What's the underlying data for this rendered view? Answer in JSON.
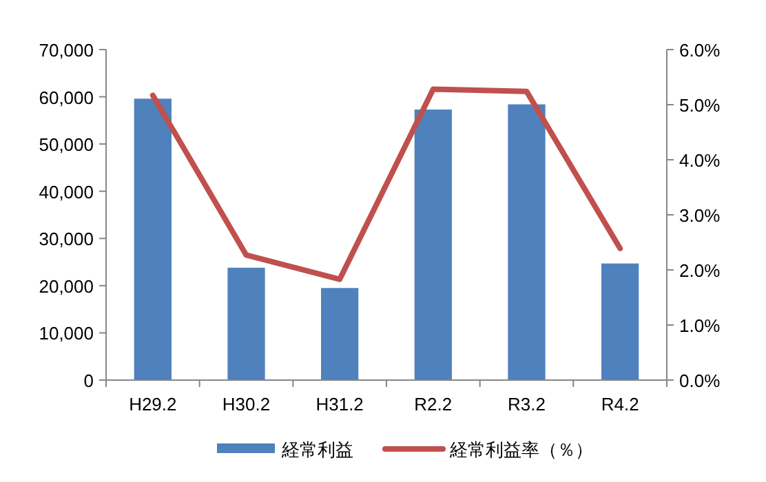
{
  "chart_data": {
    "type": "bar",
    "categories": [
      "H29.2",
      "H30.2",
      "H31.2",
      "R2.2",
      "R3.2",
      "R4.2"
    ],
    "series": [
      {
        "name": "経常利益",
        "color": "#4f81bd",
        "values": [
          59600,
          23800,
          19500,
          57300,
          58400,
          24700
        ]
      },
      {
        "name": "経常利益率（％）",
        "type": "line",
        "axis": "y2",
        "color": "#c0504d",
        "values": [
          5.17,
          2.27,
          1.83,
          5.28,
          5.24,
          2.39
        ]
      }
    ],
    "ylim": [
      0,
      70000
    ],
    "yticks": [
      {
        "value": 0,
        "label": "0"
      },
      {
        "value": 10000,
        "label": "10,000"
      },
      {
        "value": 20000,
        "label": "20,000"
      },
      {
        "value": 30000,
        "label": "30,000"
      },
      {
        "value": 40000,
        "label": "40,000"
      },
      {
        "value": 50000,
        "label": "50,000"
      },
      {
        "value": 60000,
        "label": "60,000"
      },
      {
        "value": 70000,
        "label": "70,000"
      }
    ],
    "y2lim": [
      0,
      6
    ],
    "y2ticks": [
      {
        "value": 0,
        "label": "0.0%"
      },
      {
        "value": 1,
        "label": "1.0%"
      },
      {
        "value": 2,
        "label": "2.0%"
      },
      {
        "value": 3,
        "label": "3.0%"
      },
      {
        "value": 4,
        "label": "4.0%"
      },
      {
        "value": 5,
        "label": "5.0%"
      },
      {
        "value": 6,
        "label": "6.0%"
      }
    ],
    "legend": "bottom"
  }
}
